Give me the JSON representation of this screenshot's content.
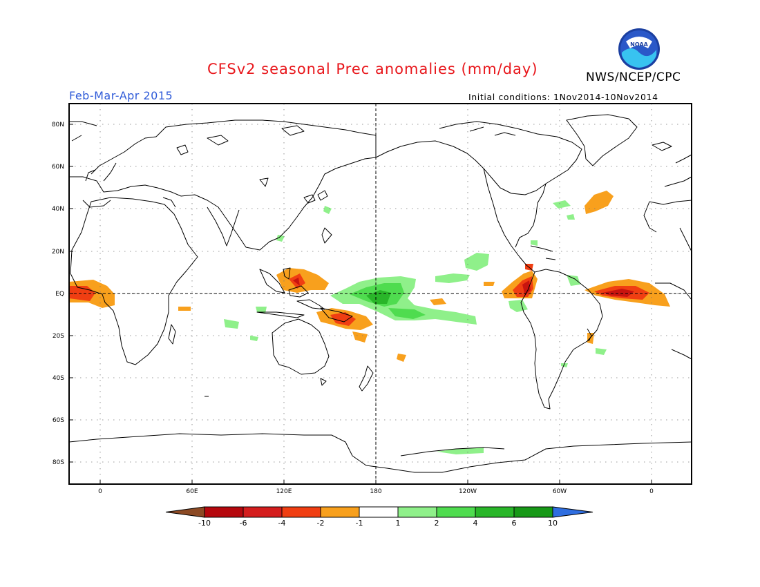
{
  "header": {
    "title": "CFSv2 seasonal Prec anomalies (mm/day)",
    "agency": "NWS/NCEP/CPC",
    "season": "Feb-Mar-Apr 2015",
    "initial_conditions": "Initial conditions: 1Nov2014-10Nov2014",
    "logo_text": "NOAA"
  },
  "map": {
    "lat_ticks": [
      "80N",
      "60N",
      "40N",
      "20N",
      "EQ",
      "20S",
      "40S",
      "60S",
      "80S"
    ],
    "lon_ticks": [
      "0",
      "60E",
      "120E",
      "180",
      "120W",
      "60W",
      "0"
    ]
  },
  "colorbar": {
    "labels": [
      "-10",
      "-6",
      "-4",
      "-2",
      "-1",
      "1",
      "2",
      "4",
      "6",
      "10"
    ],
    "colors": [
      "#8c4a24",
      "#b5070d",
      "#d41d1d",
      "#f03e12",
      "#f8a01d",
      "#ffffff",
      "#8ff08a",
      "#4fdc4f",
      "#29b629",
      "#179917",
      "#2f6ee0"
    ]
  },
  "colors": {
    "title": "#e8161b",
    "season": "#2e5ad8",
    "dry_light": "#f8a01d",
    "dry_medium": "#f03e12",
    "dry_strong": "#c8140f",
    "wet_light": "#8ff08a",
    "wet_medium": "#4fdc4f",
    "wet_strong": "#29b629"
  }
}
